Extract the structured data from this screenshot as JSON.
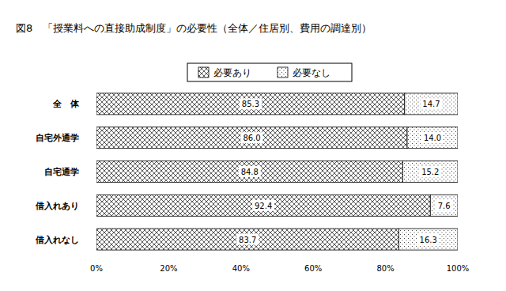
{
  "chart_data": {
    "type": "bar",
    "orientation": "horizontal",
    "stacked": true,
    "data_labels": true,
    "grid": false,
    "legend": "top",
    "title": "図8　「授業料への直接助成制度」の必要性（全体／住居別、費用の調達別）",
    "categories": [
      "全　体",
      "自宅外通学",
      "自宅通学",
      "借入れあり",
      "借入れなし"
    ],
    "series": [
      {
        "name": "必要あり",
        "color": "#333333",
        "values": [
          85.3,
          86.0,
          84.8,
          92.4,
          83.7
        ],
        "value_labels": [
          "85.3",
          "86.0",
          "84.8",
          "92.4",
          "83.7"
        ]
      },
      {
        "name": "必要なし",
        "color": "#444444",
        "values": [
          14.7,
          14.0,
          15.2,
          7.6,
          16.3
        ],
        "value_labels": [
          "14.7",
          "14.0",
          "15.2",
          "7.6",
          "16.3"
        ]
      }
    ],
    "xlim": [
      0,
      100
    ],
    "xticks": [
      {
        "value": 0,
        "label": "0%"
      },
      {
        "value": 20,
        "label": "20%"
      },
      {
        "value": 40,
        "label": "40%"
      },
      {
        "value": 60,
        "label": "60%"
      },
      {
        "value": 80,
        "label": "80%"
      },
      {
        "value": 100,
        "label": "100%"
      }
    ]
  }
}
